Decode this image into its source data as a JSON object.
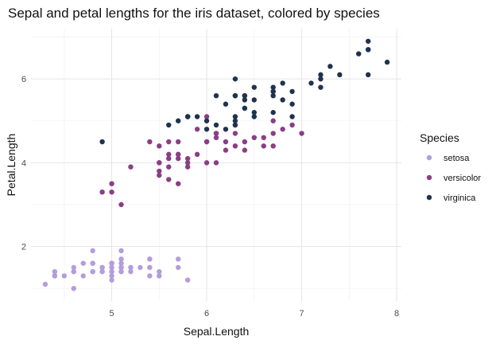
{
  "chart_data": {
    "type": "scatter",
    "title": "Sepal and petal lengths for the iris dataset, colored by species",
    "xlabel": "Sepal.Length",
    "ylabel": "Petal.Length",
    "xlim": [
      4.15,
      8.05
    ],
    "ylim": [
      0.7,
      7.2
    ],
    "x_ticks": [
      5,
      6,
      7,
      8
    ],
    "y_ticks": [
      2,
      4,
      6
    ],
    "grid": true,
    "legend": {
      "title": "Species",
      "position": "right"
    },
    "series": [
      {
        "name": "setosa",
        "color": "#b39ddb",
        "points": [
          [
            5.1,
            1.4
          ],
          [
            4.9,
            1.4
          ],
          [
            4.7,
            1.3
          ],
          [
            4.6,
            1.5
          ],
          [
            5.0,
            1.4
          ],
          [
            5.4,
            1.7
          ],
          [
            4.6,
            1.4
          ],
          [
            5.0,
            1.5
          ],
          [
            4.4,
            1.4
          ],
          [
            4.9,
            1.5
          ],
          [
            5.4,
            1.5
          ],
          [
            4.8,
            1.6
          ],
          [
            4.8,
            1.4
          ],
          [
            4.3,
            1.1
          ],
          [
            5.8,
            1.2
          ],
          [
            5.7,
            1.5
          ],
          [
            5.4,
            1.3
          ],
          [
            5.1,
            1.4
          ],
          [
            5.7,
            1.7
          ],
          [
            5.1,
            1.5
          ],
          [
            5.4,
            1.7
          ],
          [
            5.1,
            1.5
          ],
          [
            4.6,
            1.0
          ],
          [
            5.1,
            1.7
          ],
          [
            4.8,
            1.9
          ],
          [
            5.0,
            1.6
          ],
          [
            5.0,
            1.6
          ],
          [
            5.2,
            1.5
          ],
          [
            5.2,
            1.4
          ],
          [
            4.7,
            1.6
          ],
          [
            4.8,
            1.6
          ],
          [
            5.4,
            1.5
          ],
          [
            5.2,
            1.5
          ],
          [
            5.5,
            1.4
          ],
          [
            4.9,
            1.5
          ],
          [
            5.0,
            1.2
          ],
          [
            5.5,
            1.3
          ],
          [
            4.9,
            1.4
          ],
          [
            4.4,
            1.3
          ],
          [
            5.1,
            1.5
          ],
          [
            5.0,
            1.3
          ],
          [
            4.5,
            1.3
          ],
          [
            4.4,
            1.3
          ],
          [
            5.0,
            1.6
          ],
          [
            5.1,
            1.9
          ],
          [
            4.8,
            1.4
          ],
          [
            5.1,
            1.6
          ],
          [
            4.6,
            1.4
          ],
          [
            5.3,
            1.5
          ],
          [
            5.0,
            1.4
          ]
        ]
      },
      {
        "name": "versicolor",
        "color": "#8a3e85",
        "points": [
          [
            7.0,
            4.7
          ],
          [
            6.4,
            4.5
          ],
          [
            6.9,
            4.9
          ],
          [
            5.5,
            4.0
          ],
          [
            6.5,
            4.6
          ],
          [
            5.7,
            4.5
          ],
          [
            6.3,
            4.7
          ],
          [
            4.9,
            3.3
          ],
          [
            6.6,
            4.6
          ],
          [
            5.2,
            3.9
          ],
          [
            5.0,
            3.5
          ],
          [
            5.9,
            4.2
          ],
          [
            6.0,
            4.0
          ],
          [
            6.1,
            4.7
          ],
          [
            5.6,
            3.6
          ],
          [
            6.7,
            4.4
          ],
          [
            5.6,
            4.5
          ],
          [
            5.8,
            4.1
          ],
          [
            6.2,
            4.5
          ],
          [
            5.6,
            3.9
          ],
          [
            5.9,
            4.8
          ],
          [
            6.1,
            4.0
          ],
          [
            6.3,
            4.9
          ],
          [
            6.1,
            4.7
          ],
          [
            6.4,
            4.3
          ],
          [
            6.6,
            4.4
          ],
          [
            6.8,
            4.8
          ],
          [
            6.7,
            5.0
          ],
          [
            6.0,
            4.5
          ],
          [
            5.7,
            3.5
          ],
          [
            5.5,
            3.8
          ],
          [
            5.5,
            3.7
          ],
          [
            5.8,
            3.9
          ],
          [
            6.0,
            5.1
          ],
          [
            5.4,
            4.5
          ],
          [
            6.0,
            4.5
          ],
          [
            6.7,
            4.7
          ],
          [
            6.3,
            4.4
          ],
          [
            5.6,
            4.1
          ],
          [
            5.5,
            4.0
          ],
          [
            5.5,
            4.4
          ],
          [
            6.1,
            4.6
          ],
          [
            5.8,
            4.0
          ],
          [
            5.0,
            3.3
          ],
          [
            5.6,
            4.2
          ],
          [
            5.7,
            4.2
          ],
          [
            5.7,
            4.2
          ],
          [
            6.2,
            4.3
          ],
          [
            5.1,
            3.0
          ],
          [
            5.7,
            4.1
          ]
        ]
      },
      {
        "name": "virginica",
        "color": "#1f3350",
        "points": [
          [
            6.3,
            6.0
          ],
          [
            5.8,
            5.1
          ],
          [
            7.1,
            5.9
          ],
          [
            6.3,
            5.6
          ],
          [
            6.5,
            5.8
          ],
          [
            7.6,
            6.6
          ],
          [
            4.9,
            4.5
          ],
          [
            7.3,
            6.3
          ],
          [
            6.7,
            5.8
          ],
          [
            7.2,
            6.1
          ],
          [
            6.5,
            5.1
          ],
          [
            6.4,
            5.3
          ],
          [
            6.8,
            5.5
          ],
          [
            5.7,
            5.0
          ],
          [
            5.8,
            5.1
          ],
          [
            6.4,
            5.3
          ],
          [
            6.5,
            5.5
          ],
          [
            7.7,
            6.7
          ],
          [
            7.7,
            6.9
          ],
          [
            6.0,
            5.0
          ],
          [
            6.9,
            5.7
          ],
          [
            5.6,
            4.9
          ],
          [
            7.7,
            6.7
          ],
          [
            6.3,
            4.9
          ],
          [
            6.7,
            5.7
          ],
          [
            7.2,
            6.0
          ],
          [
            6.2,
            4.8
          ],
          [
            6.1,
            4.9
          ],
          [
            6.4,
            5.6
          ],
          [
            7.2,
            5.8
          ],
          [
            7.4,
            6.1
          ],
          [
            7.9,
            6.4
          ],
          [
            6.4,
            5.6
          ],
          [
            6.3,
            5.1
          ],
          [
            6.1,
            5.6
          ],
          [
            7.7,
            6.1
          ],
          [
            6.3,
            5.6
          ],
          [
            6.4,
            5.5
          ],
          [
            6.0,
            4.8
          ],
          [
            6.9,
            5.4
          ],
          [
            6.7,
            5.6
          ],
          [
            6.9,
            5.1
          ],
          [
            5.8,
            5.1
          ],
          [
            6.8,
            5.9
          ],
          [
            6.7,
            5.7
          ],
          [
            6.7,
            5.2
          ],
          [
            6.3,
            5.0
          ],
          [
            6.5,
            5.2
          ],
          [
            6.2,
            5.4
          ],
          [
            5.9,
            5.1
          ]
        ]
      }
    ]
  }
}
